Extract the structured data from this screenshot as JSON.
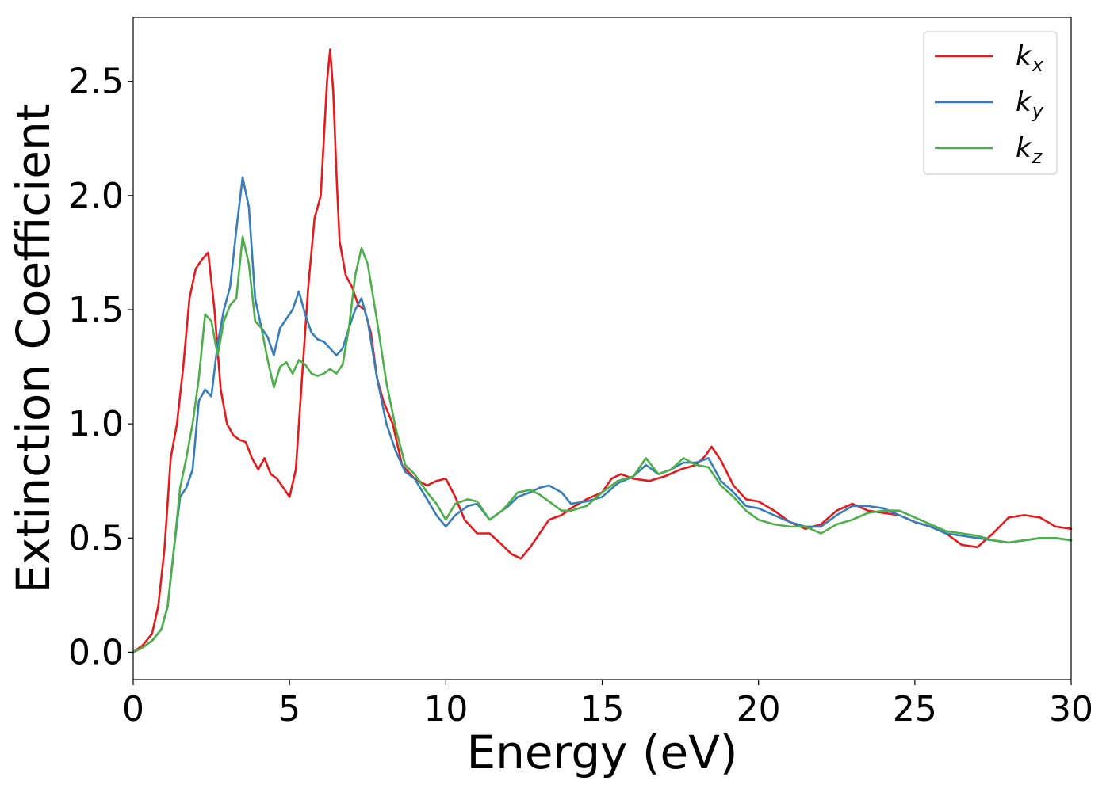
{
  "chart_data": {
    "type": "line",
    "title": "",
    "xlabel": "Energy (eV)",
    "ylabel": "Extinction Coefficient",
    "xlim": [
      0,
      30
    ],
    "ylim": [
      -0.12,
      2.78
    ],
    "xticks": [
      0,
      5,
      10,
      15,
      20,
      25,
      30
    ],
    "xtick_labels": [
      "0",
      "5",
      "10",
      "15",
      "20",
      "25",
      "30"
    ],
    "yticks": [
      0.0,
      0.5,
      1.0,
      1.5,
      2.0,
      2.5
    ],
    "ytick_labels": [
      "0.0",
      "0.5",
      "1.0",
      "1.5",
      "2.0",
      "2.5"
    ],
    "grid": false,
    "legend_position": "top-right",
    "series": [
      {
        "name": "k_x",
        "legend_main": "k",
        "legend_sub": "x",
        "color": "#e41a1c",
        "x": [
          0,
          0.3,
          0.6,
          0.8,
          1.0,
          1.2,
          1.4,
          1.6,
          1.8,
          2.0,
          2.2,
          2.4,
          2.6,
          2.8,
          3.0,
          3.2,
          3.4,
          3.6,
          3.8,
          4.0,
          4.2,
          4.4,
          4.6,
          4.8,
          5.0,
          5.2,
          5.4,
          5.6,
          5.8,
          6.0,
          6.1,
          6.2,
          6.3,
          6.4,
          6.5,
          6.6,
          6.8,
          7.0,
          7.2,
          7.4,
          7.6,
          7.8,
          8.0,
          8.3,
          8.6,
          9.0,
          9.4,
          9.7,
          10.0,
          10.3,
          10.6,
          11.0,
          11.4,
          11.8,
          12.1,
          12.4,
          12.7,
          13.0,
          13.3,
          13.7,
          14.0,
          14.5,
          15.0,
          15.3,
          15.6,
          16.0,
          16.5,
          17.0,
          17.5,
          18.0,
          18.3,
          18.5,
          18.8,
          19.2,
          19.6,
          20.0,
          20.5,
          21.0,
          21.5,
          22.0,
          22.5,
          23.0,
          23.5,
          24.0,
          24.5,
          25.0,
          25.5,
          26.0,
          26.5,
          27.0,
          27.5,
          28.0,
          28.5,
          29.0,
          29.5,
          30.0
        ],
        "values": [
          0.0,
          0.03,
          0.08,
          0.2,
          0.45,
          0.85,
          1.0,
          1.25,
          1.55,
          1.68,
          1.72,
          1.75,
          1.5,
          1.15,
          1.0,
          0.95,
          0.93,
          0.92,
          0.85,
          0.8,
          0.85,
          0.78,
          0.76,
          0.72,
          0.68,
          0.8,
          1.2,
          1.6,
          1.9,
          2.0,
          2.25,
          2.5,
          2.64,
          2.45,
          2.1,
          1.8,
          1.65,
          1.6,
          1.52,
          1.5,
          1.4,
          1.2,
          1.1,
          1.0,
          0.82,
          0.76,
          0.73,
          0.75,
          0.76,
          0.68,
          0.58,
          0.52,
          0.52,
          0.47,
          0.43,
          0.41,
          0.46,
          0.52,
          0.58,
          0.6,
          0.63,
          0.67,
          0.7,
          0.76,
          0.78,
          0.76,
          0.75,
          0.77,
          0.8,
          0.82,
          0.86,
          0.9,
          0.84,
          0.73,
          0.67,
          0.66,
          0.62,
          0.57,
          0.54,
          0.56,
          0.62,
          0.65,
          0.62,
          0.61,
          0.6,
          0.57,
          0.55,
          0.52,
          0.47,
          0.46,
          0.52,
          0.59,
          0.6,
          0.59,
          0.55,
          0.54
        ]
      },
      {
        "name": "k_y",
        "legend_main": "k",
        "legend_sub": "y",
        "color": "#377eb8",
        "x": [
          0,
          0.3,
          0.6,
          0.9,
          1.1,
          1.3,
          1.5,
          1.7,
          1.9,
          2.1,
          2.3,
          2.5,
          2.7,
          2.9,
          3.1,
          3.3,
          3.5,
          3.7,
          3.9,
          4.1,
          4.3,
          4.5,
          4.7,
          4.9,
          5.1,
          5.3,
          5.5,
          5.7,
          5.9,
          6.1,
          6.3,
          6.5,
          6.7,
          6.9,
          7.1,
          7.3,
          7.5,
          7.8,
          8.1,
          8.4,
          8.7,
          9.0,
          9.4,
          9.7,
          10.0,
          10.3,
          10.7,
          11.0,
          11.4,
          11.8,
          12.0,
          12.3,
          12.7,
          13.0,
          13.3,
          13.7,
          14.0,
          14.5,
          15.0,
          15.5,
          16.0,
          16.4,
          16.8,
          17.2,
          17.6,
          18.0,
          18.4,
          18.8,
          19.2,
          19.6,
          20.0,
          20.5,
          21.0,
          21.5,
          22.0,
          22.5,
          23.0,
          23.5,
          24.0,
          24.5,
          25.0,
          25.5,
          26.0,
          26.5,
          27.0,
          27.5,
          28.0,
          28.5,
          29.0,
          29.5,
          30.0
        ],
        "values": [
          0.0,
          0.02,
          0.05,
          0.1,
          0.2,
          0.45,
          0.68,
          0.72,
          0.8,
          1.1,
          1.15,
          1.12,
          1.35,
          1.5,
          1.6,
          1.85,
          2.08,
          1.95,
          1.55,
          1.42,
          1.38,
          1.3,
          1.42,
          1.46,
          1.5,
          1.58,
          1.48,
          1.4,
          1.37,
          1.36,
          1.33,
          1.3,
          1.33,
          1.42,
          1.5,
          1.55,
          1.45,
          1.2,
          1.0,
          0.88,
          0.79,
          0.76,
          0.67,
          0.6,
          0.55,
          0.6,
          0.64,
          0.65,
          0.58,
          0.62,
          0.64,
          0.68,
          0.7,
          0.72,
          0.73,
          0.7,
          0.65,
          0.66,
          0.68,
          0.74,
          0.77,
          0.82,
          0.78,
          0.8,
          0.83,
          0.83,
          0.85,
          0.75,
          0.7,
          0.64,
          0.63,
          0.6,
          0.57,
          0.55,
          0.55,
          0.6,
          0.64,
          0.64,
          0.63,
          0.6,
          0.57,
          0.55,
          0.52,
          0.51,
          0.5,
          0.49,
          0.48,
          0.49,
          0.5,
          0.5,
          0.49
        ]
      },
      {
        "name": "k_z",
        "legend_main": "k",
        "legend_sub": "z",
        "color": "#4daf4a",
        "x": [
          0,
          0.3,
          0.6,
          0.9,
          1.1,
          1.3,
          1.5,
          1.7,
          1.9,
          2.1,
          2.3,
          2.5,
          2.7,
          2.9,
          3.1,
          3.3,
          3.5,
          3.7,
          3.9,
          4.1,
          4.3,
          4.5,
          4.7,
          4.9,
          5.1,
          5.3,
          5.5,
          5.7,
          5.9,
          6.1,
          6.3,
          6.5,
          6.7,
          6.9,
          7.1,
          7.3,
          7.5,
          7.8,
          8.1,
          8.4,
          8.7,
          9.0,
          9.4,
          9.7,
          10.0,
          10.3,
          10.7,
          11.0,
          11.4,
          11.8,
          12.0,
          12.3,
          12.7,
          13.0,
          13.3,
          13.7,
          14.0,
          14.5,
          15.0,
          15.5,
          16.0,
          16.4,
          16.8,
          17.2,
          17.6,
          18.0,
          18.4,
          18.8,
          19.2,
          19.6,
          20.0,
          20.5,
          21.0,
          21.5,
          22.0,
          22.5,
          23.0,
          23.5,
          24.0,
          24.5,
          25.0,
          25.5,
          26.0,
          26.5,
          27.0,
          27.5,
          28.0,
          28.5,
          29.0,
          29.5,
          30.0
        ],
        "values": [
          0.0,
          0.02,
          0.05,
          0.1,
          0.2,
          0.45,
          0.72,
          0.85,
          1.0,
          1.2,
          1.48,
          1.45,
          1.3,
          1.45,
          1.52,
          1.55,
          1.82,
          1.7,
          1.45,
          1.42,
          1.28,
          1.16,
          1.25,
          1.27,
          1.22,
          1.28,
          1.26,
          1.22,
          1.21,
          1.22,
          1.24,
          1.22,
          1.26,
          1.42,
          1.65,
          1.77,
          1.7,
          1.45,
          1.18,
          0.98,
          0.82,
          0.78,
          0.7,
          0.65,
          0.58,
          0.65,
          0.67,
          0.66,
          0.58,
          0.62,
          0.65,
          0.7,
          0.71,
          0.69,
          0.66,
          0.62,
          0.62,
          0.64,
          0.7,
          0.75,
          0.77,
          0.85,
          0.78,
          0.8,
          0.85,
          0.82,
          0.81,
          0.73,
          0.68,
          0.62,
          0.58,
          0.56,
          0.55,
          0.55,
          0.52,
          0.56,
          0.58,
          0.61,
          0.62,
          0.62,
          0.59,
          0.56,
          0.53,
          0.52,
          0.51,
          0.49,
          0.48,
          0.49,
          0.5,
          0.5,
          0.49
        ]
      }
    ]
  }
}
